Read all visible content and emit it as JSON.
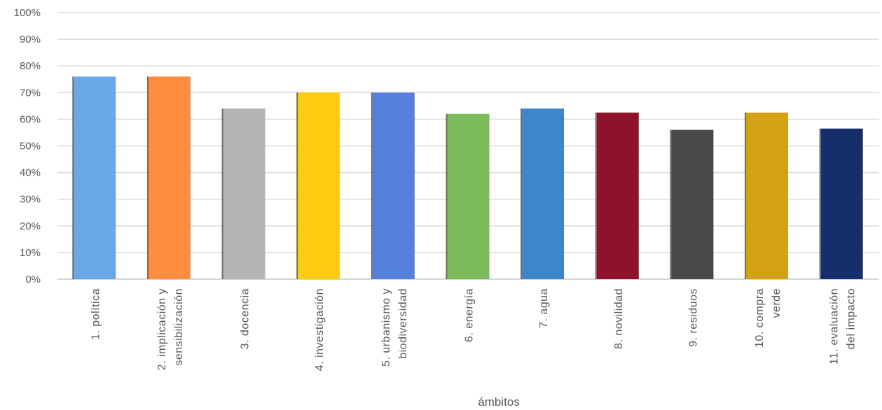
{
  "chart_data": {
    "type": "bar",
    "xlabel": "ámbitos",
    "ylabel": "",
    "ylim": [
      0,
      100
    ],
    "y_ticks": [
      "0%",
      "10%",
      "20%",
      "30%",
      "40%",
      "50%",
      "60%",
      "70%",
      "80%",
      "90%",
      "100%"
    ],
    "grid": true,
    "legend": "none",
    "categories": [
      [
        "1. política"
      ],
      [
        "2. implicación y",
        "sensibilización"
      ],
      [
        "3. docencia"
      ],
      [
        "4. investigación"
      ],
      [
        "5. urbanismo y",
        "biodiversidad"
      ],
      [
        "6. energía"
      ],
      [
        "7. agua"
      ],
      [
        "8. novilidad"
      ],
      [
        "9. residuos"
      ],
      [
        "10. compra",
        "verde"
      ],
      [
        "11. evaluación",
        "del impacto"
      ]
    ],
    "values": [
      76,
      76,
      64,
      70,
      70,
      62,
      64,
      62.5,
      56,
      62.5,
      56.5
    ],
    "colors": [
      "#6AA8E8",
      "#FF8C3F",
      "#B5B5B5",
      "#FFCC11",
      "#5580DB",
      "#7DBB5A",
      "#3E85C9",
      "#8E1229",
      "#4A4A4A",
      "#D2A114",
      "#142F6C"
    ]
  }
}
